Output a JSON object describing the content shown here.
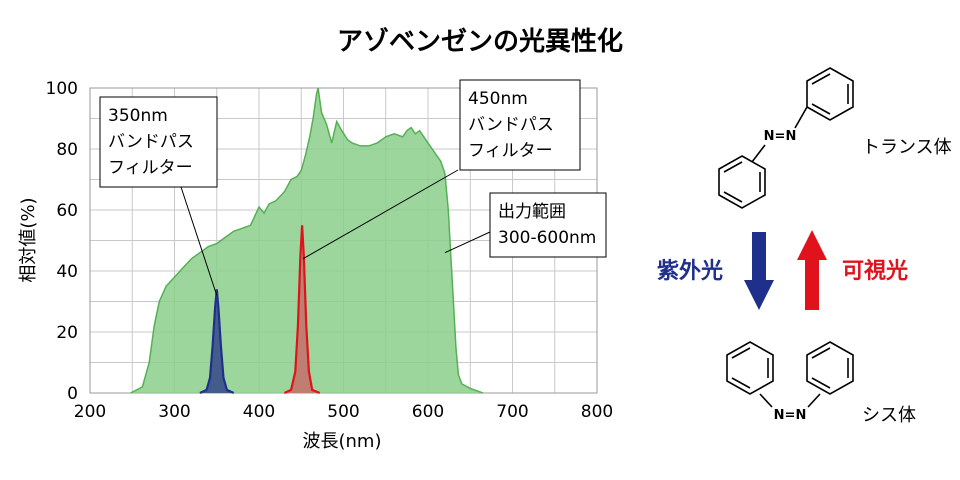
{
  "chart_data": {
    "type": "area",
    "title": "アゾベンゼンの光異性化",
    "xlabel": "波長(nm)",
    "ylabel": "相対値(%)",
    "xlim": [
      200,
      800
    ],
    "ylim": [
      0,
      100
    ],
    "xticks": [
      200,
      300,
      400,
      500,
      600,
      700,
      800
    ],
    "yticks": [
      0,
      20,
      40,
      60,
      80,
      100
    ],
    "grid": true,
    "series": [
      {
        "color": "#8ccf8c",
        "stroke": "#55b055",
        "points": [
          [
            248,
            0
          ],
          [
            262,
            2
          ],
          [
            270,
            10
          ],
          [
            276,
            22
          ],
          [
            282,
            30
          ],
          [
            290,
            35
          ],
          [
            300,
            38
          ],
          [
            310,
            41
          ],
          [
            320,
            44
          ],
          [
            330,
            46
          ],
          [
            340,
            48
          ],
          [
            350,
            49
          ],
          [
            360,
            51
          ],
          [
            370,
            53
          ],
          [
            380,
            54
          ],
          [
            390,
            55
          ],
          [
            395,
            58
          ],
          [
            400,
            61
          ],
          [
            406,
            59
          ],
          [
            412,
            62
          ],
          [
            420,
            63
          ],
          [
            430,
            66
          ],
          [
            438,
            70
          ],
          [
            445,
            71
          ],
          [
            450,
            73
          ],
          [
            455,
            78
          ],
          [
            460,
            84
          ],
          [
            464,
            90
          ],
          [
            468,
            98
          ],
          [
            470,
            100
          ],
          [
            474,
            92
          ],
          [
            480,
            88
          ],
          [
            486,
            82
          ],
          [
            492,
            89
          ],
          [
            498,
            86
          ],
          [
            505,
            83
          ],
          [
            510,
            82
          ],
          [
            520,
            81
          ],
          [
            530,
            81
          ],
          [
            540,
            82
          ],
          [
            550,
            84
          ],
          [
            560,
            85
          ],
          [
            570,
            84
          ],
          [
            575,
            86
          ],
          [
            580,
            87
          ],
          [
            585,
            85
          ],
          [
            590,
            86
          ],
          [
            595,
            84
          ],
          [
            600,
            82
          ],
          [
            605,
            80
          ],
          [
            610,
            78
          ],
          [
            615,
            76
          ],
          [
            620,
            72
          ],
          [
            624,
            60
          ],
          [
            627,
            45
          ],
          [
            630,
            30
          ],
          [
            633,
            15
          ],
          [
            636,
            6
          ],
          [
            640,
            3
          ],
          [
            650,
            1.5
          ],
          [
            665,
            0
          ]
        ]
      },
      {
        "color": "#3a4f8a",
        "stroke": "#1f2f8c",
        "points": [
          [
            330,
            0
          ],
          [
            338,
            1
          ],
          [
            342,
            5
          ],
          [
            345,
            15
          ],
          [
            348,
            28
          ],
          [
            350,
            34
          ],
          [
            352,
            28
          ],
          [
            355,
            15
          ],
          [
            358,
            5
          ],
          [
            362,
            1
          ],
          [
            370,
            0
          ]
        ]
      },
      {
        "color": "#c2766e",
        "stroke": "#e0131c",
        "points": [
          [
            430,
            0
          ],
          [
            438,
            1
          ],
          [
            443,
            7
          ],
          [
            446,
            22
          ],
          [
            449,
            45
          ],
          [
            451,
            55
          ],
          [
            453,
            45
          ],
          [
            456,
            22
          ],
          [
            459,
            7
          ],
          [
            463,
            1
          ],
          [
            472,
            0
          ]
        ]
      }
    ],
    "annotations": [
      {
        "id": "bp350",
        "lines": [
          "350nm",
          "バンドパス",
          "フィルター"
        ],
        "target": [
          350,
          32
        ]
      },
      {
        "id": "bp450",
        "lines": [
          "450nm",
          "バンドパス",
          "フィルター"
        ],
        "target": [
          452,
          44
        ]
      },
      {
        "id": "output",
        "lines": [
          "出力範囲",
          "300-600nm"
        ],
        "target": [
          620,
          46
        ]
      }
    ]
  },
  "diagram": {
    "trans_label": "トランス体",
    "cis_label": "シス体",
    "azo_bond": "N=N",
    "uv_label": "紫外光",
    "vis_label": "可視光",
    "uv_color": "#1f2f8c",
    "vis_color": "#e0131c"
  }
}
